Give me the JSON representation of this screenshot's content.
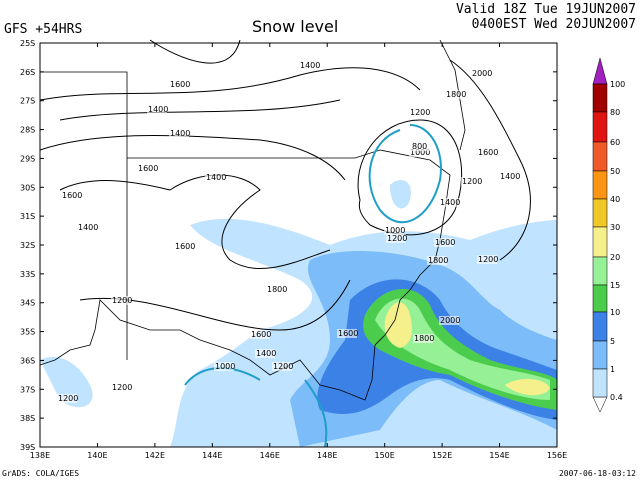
{
  "header": {
    "model": "GFS +54HRS",
    "title": "Snow level",
    "valid": "Valid 18Z Tue 19JUN2007",
    "local": "0400EST Wed 20JUN2007"
  },
  "axes": {
    "lat": [
      "25S",
      "26S",
      "27S",
      "28S",
      "29S",
      "30S",
      "31S",
      "32S",
      "33S",
      "34S",
      "35S",
      "36S",
      "37S",
      "38S",
      "39S"
    ],
    "lon": [
      "138E",
      "140E",
      "142E",
      "144E",
      "146E",
      "148E",
      "150E",
      "152E",
      "154E",
      "156E"
    ]
  },
  "colorbar": {
    "labels": [
      "100",
      "80",
      "60",
      "50",
      "40",
      "30",
      "20",
      "15",
      "10",
      "5",
      "1",
      "0.4"
    ]
  },
  "contour_labels": [
    "1400",
    "1600",
    "1400",
    "1400",
    "1600",
    "1600",
    "1400",
    "1400",
    "1600",
    "1800",
    "1200",
    "1600",
    "1400",
    "1200",
    "1000",
    "1200",
    "1200",
    "2000",
    "1800",
    "1200",
    "1000",
    "800",
    "1600",
    "1400",
    "1200",
    "1400",
    "1000",
    "1200",
    "1600",
    "1200",
    "1800",
    "2000",
    "1800",
    "1600"
  ],
  "footer": {
    "left": "GrADS: COLA/IGES",
    "right": "2007-06-18-03:12"
  }
}
